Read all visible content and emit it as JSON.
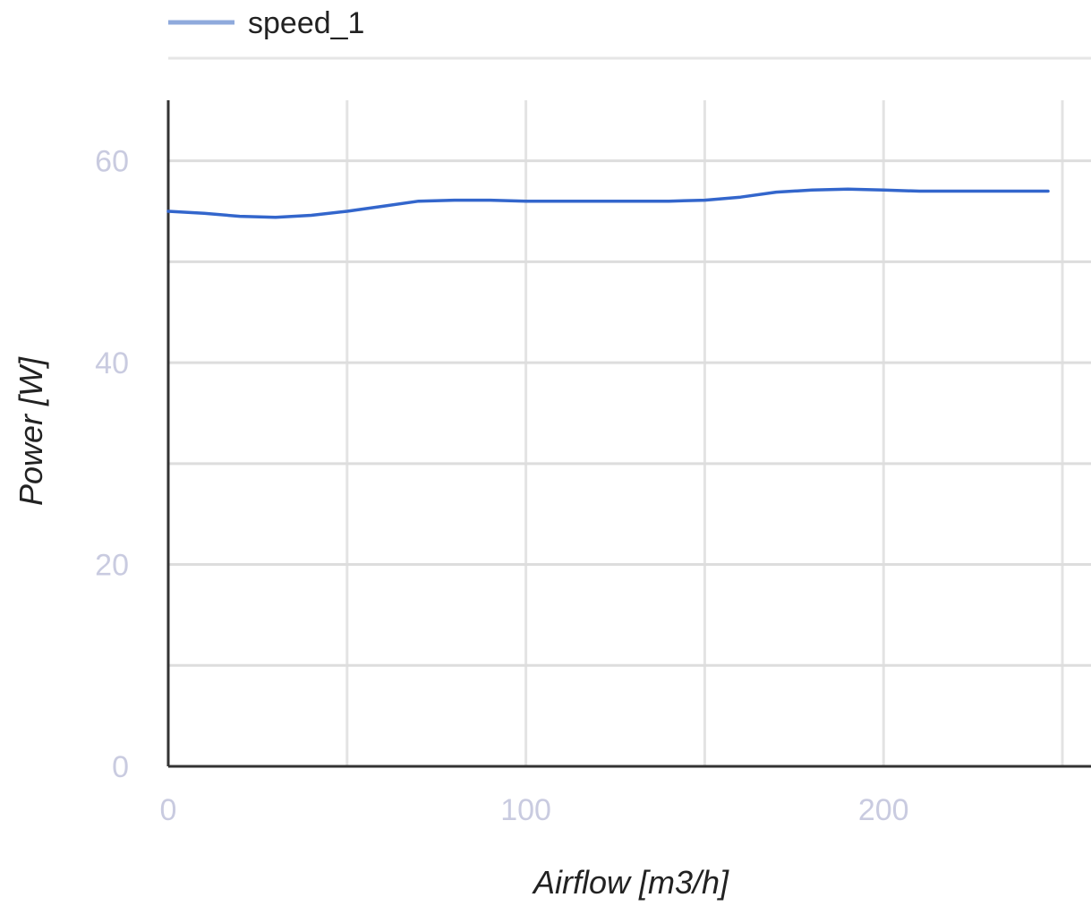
{
  "chart_data": {
    "type": "line",
    "xlabel": "Airflow [m3/h]",
    "ylabel": "Power [W]",
    "xlim": [
      0,
      258
    ],
    "ylim": [
      0,
      66
    ],
    "x_ticks": [
      0,
      100,
      200
    ],
    "y_ticks": [
      0,
      20,
      40,
      60
    ],
    "grid": true,
    "legend_position": "top",
    "series": [
      {
        "name": "speed_1",
        "color": "#3366cc",
        "legend_color": "#8faadc",
        "points": [
          [
            0,
            55.0
          ],
          [
            10,
            54.8
          ],
          [
            20,
            54.5
          ],
          [
            30,
            54.4
          ],
          [
            40,
            54.6
          ],
          [
            50,
            55.0
          ],
          [
            60,
            55.5
          ],
          [
            70,
            56.0
          ],
          [
            80,
            56.1
          ],
          [
            90,
            56.1
          ],
          [
            100,
            56.0
          ],
          [
            110,
            56.0
          ],
          [
            120,
            56.0
          ],
          [
            130,
            56.0
          ],
          [
            140,
            56.0
          ],
          [
            150,
            56.1
          ],
          [
            160,
            56.4
          ],
          [
            170,
            56.9
          ],
          [
            180,
            57.1
          ],
          [
            190,
            57.2
          ],
          [
            200,
            57.1
          ],
          [
            210,
            57.0
          ],
          [
            220,
            57.0
          ],
          [
            230,
            57.0
          ],
          [
            246,
            57.0
          ]
        ]
      }
    ]
  }
}
